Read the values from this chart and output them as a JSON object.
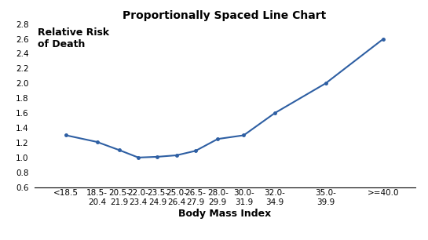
{
  "title": "Proportionally Spaced Line Chart",
  "xlabel": "Body Mass Index",
  "ylabel_line1": "Relative Risk",
  "ylabel_line2": "of Death",
  "x_labels": [
    "<18.5",
    "18.5-\n20.4",
    "20.5-\n21.9",
    "22.0-\n23.4",
    "23.5-\n24.9",
    "25.0-\n26.4",
    "26.5-\n27.9",
    "28.0-\n29.9",
    "30.0-\n31.9",
    "32.0-\n34.9",
    "35.0-\n39.9",
    ">=40.0"
  ],
  "x_positions": [
    17.0,
    19.45,
    21.2,
    22.7,
    24.2,
    25.7,
    27.2,
    28.95,
    31.0,
    33.45,
    37.45,
    42.0
  ],
  "y_values": [
    1.3,
    1.21,
    1.1,
    1.0,
    1.01,
    1.03,
    1.09,
    1.25,
    1.3,
    1.6,
    2.0,
    2.6
  ],
  "ylim": [
    0.6,
    2.8
  ],
  "yticks": [
    0.6,
    0.8,
    1.0,
    1.2,
    1.4,
    1.6,
    1.8,
    2.0,
    2.2,
    2.4,
    2.6,
    2.8
  ],
  "line_color": "#2E5FA3",
  "line_width": 1.5,
  "bg_color": "#FFFFFF",
  "title_fontsize": 10,
  "axis_label_fontsize": 9,
  "tick_fontsize": 7.5,
  "ylabel_fontsize": 9
}
